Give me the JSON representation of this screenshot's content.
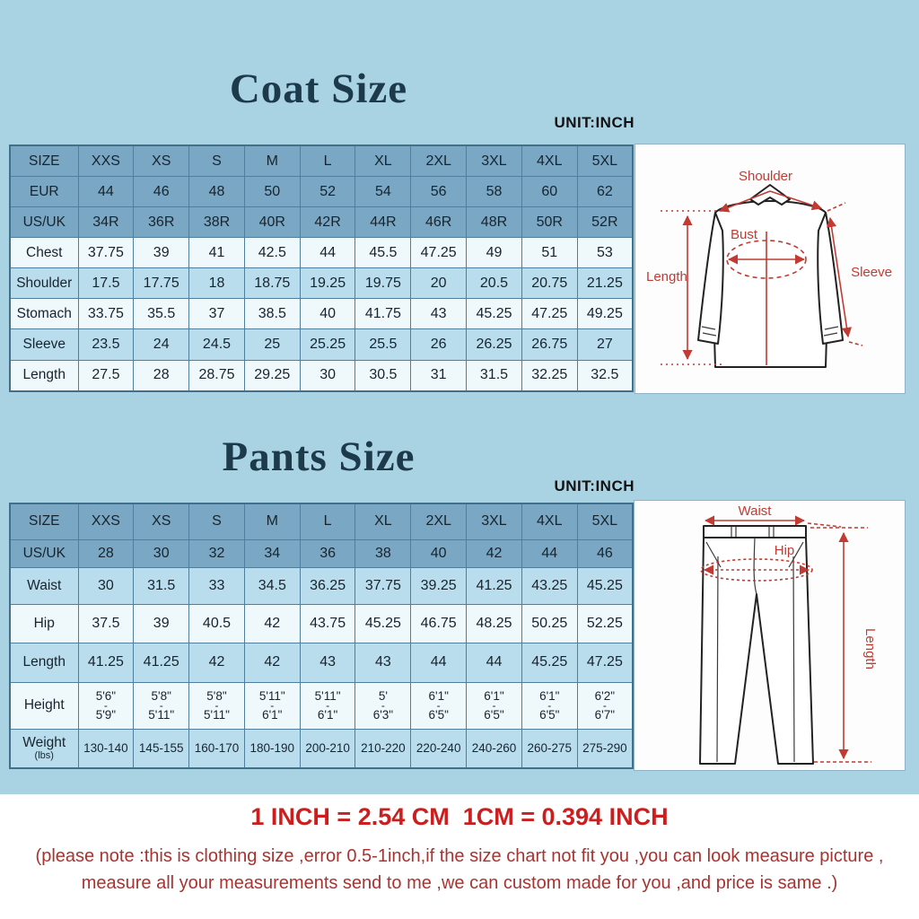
{
  "coat": {
    "title": "Coat Size",
    "unit_label": "UNIT:INCH",
    "rows": [
      {
        "label": "SIZE",
        "type": "header",
        "values": [
          "XXS",
          "XS",
          "S",
          "M",
          "L",
          "XL",
          "2XL",
          "3XL",
          "4XL",
          "5XL"
        ]
      },
      {
        "label": "EUR",
        "type": "header",
        "values": [
          "44",
          "46",
          "48",
          "50",
          "52",
          "54",
          "56",
          "58",
          "60",
          "62"
        ]
      },
      {
        "label": "US/UK",
        "type": "header",
        "values": [
          "34R",
          "36R",
          "38R",
          "40R",
          "42R",
          "44R",
          "46R",
          "48R",
          "50R",
          "52R"
        ]
      },
      {
        "label": "Chest",
        "type": "plain",
        "values": [
          "37.75",
          "39",
          "41",
          "42.5",
          "44",
          "45.5",
          "47.25",
          "49",
          "51",
          "53"
        ]
      },
      {
        "label": "Shoulder",
        "type": "alt",
        "values": [
          "17.5",
          "17.75",
          "18",
          "18.75",
          "19.25",
          "19.75",
          "20",
          "20.5",
          "20.75",
          "21.25"
        ]
      },
      {
        "label": "Stomach",
        "type": "plain",
        "values": [
          "33.75",
          "35.5",
          "37",
          "38.5",
          "40",
          "41.75",
          "43",
          "45.25",
          "47.25",
          "49.25"
        ]
      },
      {
        "label": "Sleeve",
        "type": "alt",
        "values": [
          "23.5",
          "24",
          "24.5",
          "25",
          "25.25",
          "25.5",
          "26",
          "26.25",
          "26.75",
          "27"
        ]
      },
      {
        "label": "Length",
        "type": "plain",
        "values": [
          "27.5",
          "28",
          "28.75",
          "29.25",
          "30",
          "30.5",
          "31",
          "31.5",
          "32.25",
          "32.5"
        ]
      }
    ],
    "diagram": {
      "shoulder": "Shoulder",
      "bust": "Bust",
      "length": "Length",
      "sleeve": "Sleeve"
    }
  },
  "pants": {
    "title": "Pants Size",
    "unit_label": "UNIT:INCH",
    "rows": [
      {
        "label": "SIZE",
        "type": "header",
        "values": [
          "XXS",
          "XS",
          "S",
          "M",
          "L",
          "XL",
          "2XL",
          "3XL",
          "4XL",
          "5XL"
        ]
      },
      {
        "label": "US/UK",
        "type": "header",
        "values": [
          "28",
          "30",
          "32",
          "34",
          "36",
          "38",
          "40",
          "42",
          "44",
          "46"
        ]
      },
      {
        "label": "Waist",
        "type": "alt",
        "values": [
          "30",
          "31.5",
          "33",
          "34.5",
          "36.25",
          "37.75",
          "39.25",
          "41.25",
          "43.25",
          "45.25"
        ]
      },
      {
        "label": "Hip",
        "type": "plain",
        "values": [
          "37.5",
          "39",
          "40.5",
          "42",
          "43.75",
          "45.25",
          "46.75",
          "48.25",
          "50.25",
          "52.25"
        ]
      },
      {
        "label": "Length",
        "type": "alt",
        "values": [
          "41.25",
          "41.25",
          "42",
          "42",
          "43",
          "43",
          "44",
          "44",
          "45.25",
          "47.25"
        ]
      },
      {
        "label": "Height",
        "type": "plain",
        "values": [
          [
            "5'6\"",
            "5'9\""
          ],
          [
            "5'8\"",
            "5'11\""
          ],
          [
            "5'8\"",
            "5'11\""
          ],
          [
            "5'11\"",
            "6'1\""
          ],
          [
            "5'11\"",
            "6'1\""
          ],
          [
            "5'",
            "6'3\""
          ],
          [
            "6'1\"",
            "6'5\""
          ],
          [
            "6'1\"",
            "6'5\""
          ],
          [
            "6'1\"",
            "6'5\""
          ],
          [
            "6'2\"",
            "6'7\""
          ]
        ]
      },
      {
        "label": "Weight",
        "sublabel": "(lbs)",
        "type": "alt",
        "values": [
          "130-140",
          "145-155",
          "160-170",
          "180-190",
          "200-210",
          "210-220",
          "220-240",
          "240-260",
          "260-275",
          "275-290"
        ]
      }
    ],
    "diagram": {
      "waist": "Waist",
      "hip": "Hip",
      "length": "Length"
    }
  },
  "footer": {
    "conversion": "1 INCH = 2.54 CM  1CM = 0.394 INCH",
    "note_line1": "(please note :this is clothing size ,error 0.5-1inch,if the size chart not fit you ,you can look measure picture ,",
    "note_line2": "measure all your measurements send to me ,we can custom made for you ,and price is same .)"
  },
  "colors": {
    "background_blue": "#a9d3e3",
    "header_row_blue": "#7aa7c3",
    "alt_row_blue": "#badded",
    "plain_row_white": "#eff8fb",
    "table_border": "#4f7f9c",
    "title_navy": "#1d3a4b",
    "measure_red": "#c23b32",
    "conversion_red": "#cb1f1f",
    "note_red": "#a93330"
  }
}
